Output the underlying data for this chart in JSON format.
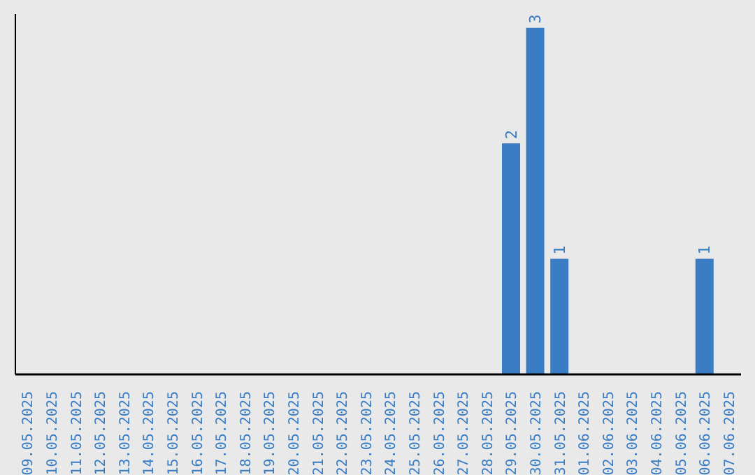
{
  "chart_data": {
    "type": "bar",
    "categories": [
      "09.05.2025",
      "10.05.2025",
      "11.05.2025",
      "12.05.2025",
      "13.05.2025",
      "14.05.2025",
      "15.05.2025",
      "16.05.2025",
      "17.05.2025",
      "18.05.2025",
      "19.05.2025",
      "20.05.2025",
      "21.05.2025",
      "22.05.2025",
      "23.05.2025",
      "24.05.2025",
      "25.05.2025",
      "26.05.2025",
      "27.05.2025",
      "28.05.2025",
      "29.05.2025",
      "30.05.2025",
      "31.05.2025",
      "01.06.2025",
      "02.06.2025",
      "03.06.2025",
      "04.06.2025",
      "05.06.2025",
      "06.06.2025",
      "07.06.2025"
    ],
    "values": [
      null,
      null,
      null,
      null,
      null,
      null,
      null,
      null,
      null,
      null,
      null,
      null,
      null,
      null,
      null,
      null,
      null,
      null,
      null,
      null,
      2,
      3,
      1,
      null,
      null,
      null,
      null,
      null,
      1,
      null
    ],
    "color": "#3a7dc4",
    "data_labels": true
  }
}
